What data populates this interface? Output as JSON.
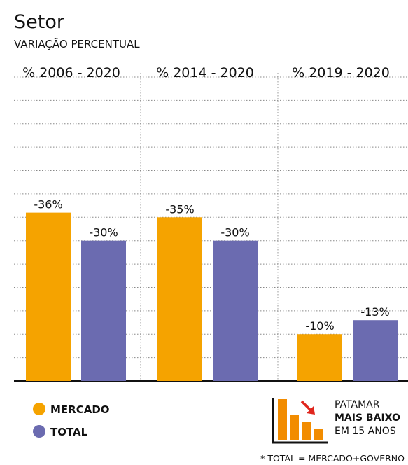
{
  "chart_data": {
    "type": "bar",
    "title": "Setor",
    "subtitle": "VARIAÇÃO PERCENTUAL",
    "categories": [
      "% 2006 - 2020",
      "% 2014 - 2020",
      "% 2019 - 2020"
    ],
    "series": [
      {
        "name": "MERCADO",
        "color": "#f5a300",
        "values": [
          -36,
          -35,
          -10
        ],
        "value_labels": [
          "-36%",
          "-35%",
          "-10%"
        ]
      },
      {
        "name": "TOTAL",
        "color": "#6b6bb0",
        "values": [
          -30,
          -30,
          -13
        ],
        "value_labels": [
          "-30%",
          "-30%",
          "-13%"
        ]
      }
    ],
    "ylim": [
      0,
      -65
    ],
    "yticks": [
      0,
      -5,
      -10,
      -15,
      -20,
      -25,
      -30,
      -35,
      -40,
      -45,
      -50,
      -55,
      -60,
      -65
    ],
    "tick_labels": false,
    "grid": true,
    "annotation": [
      "PATAMAR",
      "MAIS BAIXO",
      "EM 15 ANOS"
    ],
    "footnote": "* TOTAL = MERCADO+GOVERNO"
  }
}
